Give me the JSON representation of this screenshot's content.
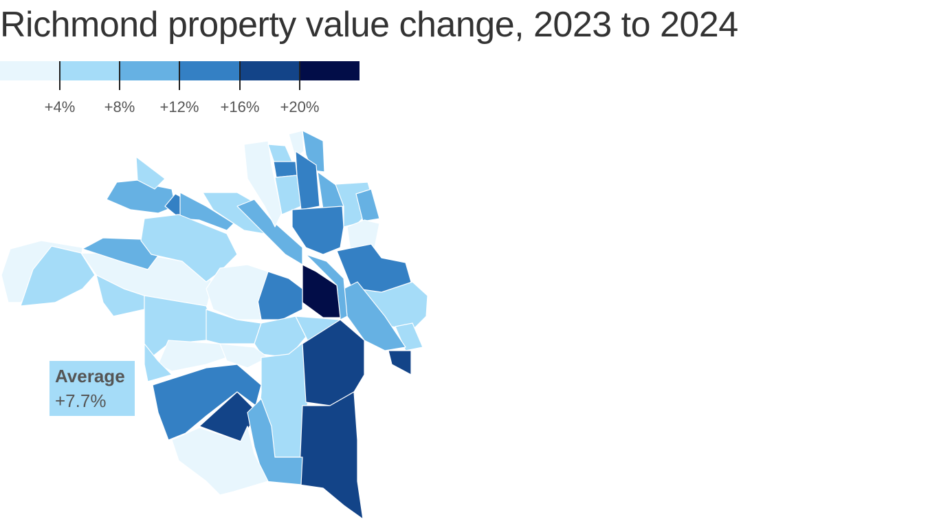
{
  "title": "Richmond property value change, 2023 to 2024",
  "legend": {
    "colors": [
      "#e8f6fd",
      "#a5dcf8",
      "#66b1e3",
      "#3480c4",
      "#134488",
      "#020d48"
    ],
    "ticks": [
      "+4%",
      "+8%",
      "+12%",
      "+16%",
      "+20%"
    ]
  },
  "average": {
    "label": "Average",
    "value": "+7.7%",
    "color": "#a5dcf8"
  },
  "map": {
    "name": "Richmond neighborhoods"
  }
}
